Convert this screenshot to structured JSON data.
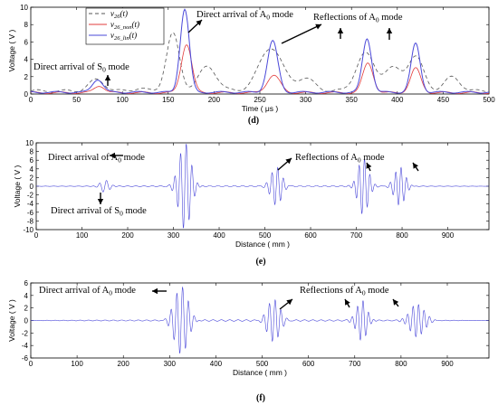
{
  "chart_data": [
    {
      "panel": "(d)",
      "type": "line",
      "xlabel": "Time ( μs )",
      "ylabel": "Voltage ( V )",
      "xlim": [
        0,
        500
      ],
      "ylim": [
        0,
        10
      ],
      "xticks": [
        0,
        50,
        100,
        150,
        200,
        250,
        300,
        350,
        400,
        450,
        500
      ],
      "yticks": [
        0,
        2,
        4,
        6,
        8,
        10
      ],
      "grid": false,
      "legend_position": "top-left",
      "legend": [
        {
          "label": "v26(t)",
          "color": "#555555",
          "dash": "dashed"
        },
        {
          "label": "v26_non(t)",
          "color": "#e23b3b",
          "dash": "solid"
        },
        {
          "label": "v26_lin(t)",
          "color": "#4a48d9",
          "dash": "solid"
        }
      ],
      "series": [
        {
          "label": "v26(t)",
          "color": "#555555",
          "dash": "dashed",
          "peaks": [
            [
              72,
              1.3,
              12
            ],
            [
              118,
              0.3,
              10
            ],
            [
              155,
              6.6,
              10
            ],
            [
              193,
              2.8,
              14
            ],
            [
              262,
              5.0,
              18
            ],
            [
              300,
              1.4,
              14
            ],
            [
              365,
              4.3,
              14
            ],
            [
              395,
              2.6,
              14
            ],
            [
              420,
              3.9,
              12
            ],
            [
              460,
              1.6,
              12
            ]
          ],
          "base": 0.35,
          "ripple": 0.15
        },
        {
          "label": "v26_non(t)",
          "color": "#e23b3b",
          "dash": "solid",
          "peaks": [
            [
              75,
              0.8,
              8
            ],
            [
              170,
              5.6,
              8
            ],
            [
              265,
              2.0,
              10
            ],
            [
              368,
              3.4,
              8
            ],
            [
              420,
              2.8,
              8
            ]
          ],
          "base": 0.15,
          "ripple": 0.1
        },
        {
          "label": "v26_lin(t)",
          "color": "#4a48d9",
          "dash": "solid",
          "peaks": [
            [
              73,
              1.5,
              8
            ],
            [
              168,
              9.6,
              7
            ],
            [
              264,
              5.9,
              8
            ],
            [
              367,
              6.2,
              7
            ],
            [
              420,
              5.6,
              7
            ]
          ],
          "base": 0.2,
          "ripple": 0.1
        }
      ],
      "annotations": [
        {
          "text": "Direct arrival of S0 mode"
        },
        {
          "text": "Direct arrival of A0 mode"
        },
        {
          "text": "Reflections of A0 mode"
        }
      ]
    },
    {
      "panel": "(e)",
      "type": "line",
      "xlabel": "Distance ( mm )",
      "ylabel": "Voltage ( V )",
      "xlim": [
        0,
        990
      ],
      "ylim": [
        -10,
        10
      ],
      "xticks": [
        0,
        100,
        200,
        300,
        400,
        500,
        600,
        700,
        800,
        900
      ],
      "yticks": [
        -10,
        -8,
        -6,
        -4,
        -2,
        0,
        2,
        4,
        6,
        8,
        10
      ],
      "grid": false,
      "series": [
        {
          "label": "wavefield",
          "color": "#4a48d9",
          "packets": [
            [
              150,
              1.5,
              14,
              50
            ],
            [
              325,
              10,
              18,
              40
            ],
            [
              525,
              4.5,
              16,
              40
            ],
            [
              715,
              6.5,
              16,
              38
            ],
            [
              795,
              4.5,
              16,
              38
            ]
          ]
        }
      ],
      "annotations": [
        {
          "text": "Direct arrival of A0 mode"
        },
        {
          "text": "Direct arrival of S0 mode"
        },
        {
          "text": "Reflections of A0 mode"
        }
      ]
    },
    {
      "panel": "(f)",
      "type": "line",
      "xlabel": "Distance ( mm )",
      "ylabel": "Voltage ( V )",
      "xlim": [
        0,
        990
      ],
      "ylim": [
        -6,
        6
      ],
      "xticks": [
        0,
        100,
        200,
        300,
        400,
        500,
        600,
        700,
        800,
        900
      ],
      "yticks": [
        -6,
        -4,
        -2,
        0,
        2,
        4,
        6
      ],
      "grid": false,
      "series": [
        {
          "label": "wavefield",
          "color": "#4a48d9",
          "packets": [
            [
              325,
              5.5,
              20,
              40
            ],
            [
              525,
              3.5,
              18,
              40
            ],
            [
              715,
              3.2,
              16,
              38
            ],
            [
              835,
              2.6,
              22,
              38
            ]
          ]
        }
      ],
      "annotations": [
        {
          "text": "Direct arrival of A0 mode"
        },
        {
          "text": "Reflections of A0 mode"
        }
      ]
    }
  ]
}
